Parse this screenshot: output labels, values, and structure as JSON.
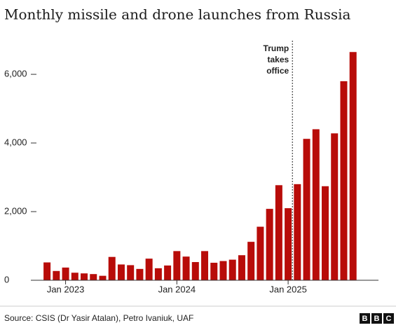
{
  "chart_data": {
    "type": "bar",
    "title": "Monthly missile and drone launches from Russia",
    "categories": [
      null,
      null,
      "Jan 2023",
      null,
      null,
      null,
      null,
      null,
      null,
      null,
      null,
      null,
      null,
      null,
      "Jan 2024",
      null,
      null,
      null,
      null,
      null,
      null,
      null,
      null,
      null,
      null,
      null,
      "Jan 2025",
      null,
      null,
      null,
      null,
      null,
      null,
      null
    ],
    "values": [
      520,
      270,
      370,
      220,
      200,
      180,
      130,
      680,
      460,
      440,
      330,
      630,
      350,
      430,
      850,
      690,
      530,
      850,
      510,
      560,
      600,
      730,
      1120,
      1560,
      2080,
      2770,
      2100,
      2800,
      4120,
      4400,
      2740,
      4280,
      5800,
      6650
    ],
    "color": "#b80c09",
    "ylim": [
      0,
      6900
    ],
    "yticks": [
      0,
      {
        "value": 2000,
        "label": "2,000"
      },
      {
        "value": 4000,
        "label": "4,000"
      },
      {
        "value": 6000,
        "label": "6,000"
      }
    ],
    "annotation": [
      "Trump",
      "takes",
      "office"
    ],
    "source": "Source: CSIS (Dr Yasir Atalan), Petro Ivaniuk, UAF",
    "logo": [
      "B",
      "B",
      "C"
    ]
  }
}
